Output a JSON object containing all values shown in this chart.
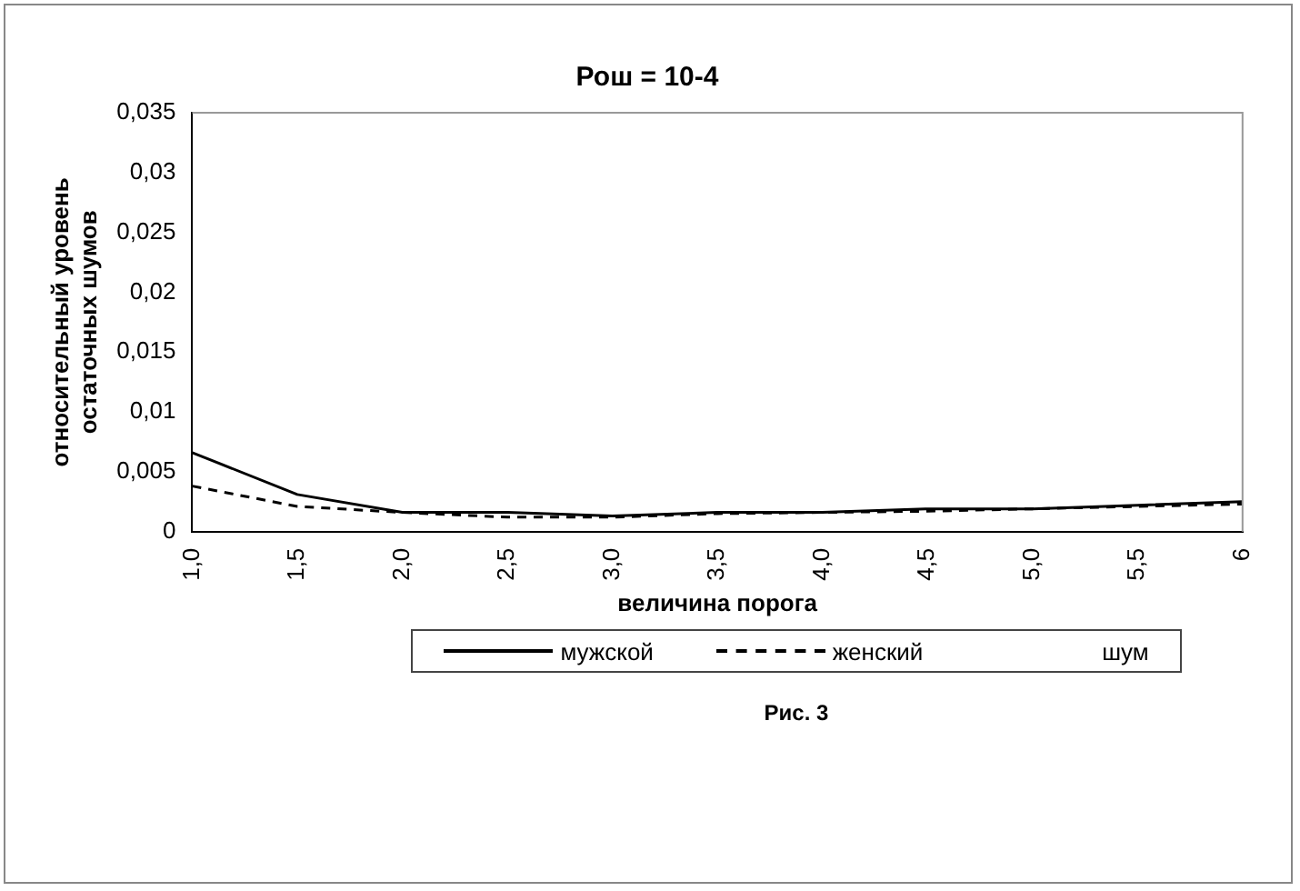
{
  "chart_data": {
    "type": "line",
    "title": "Рош = 10-4",
    "xlabel": "величина порога",
    "ylabel": "относительный уровень остаточных шумов",
    "categories": [
      "1,0",
      "1,5",
      "2,0",
      "2,5",
      "3,0",
      "3,5",
      "4,0",
      "4,5",
      "5,0",
      "5,5",
      "6"
    ],
    "series": [
      {
        "name": "мужской",
        "color": "#000000",
        "line_style": "solid",
        "values": [
          0.0066,
          0.0031,
          0.0016,
          0.0016,
          0.0013,
          0.0016,
          0.0016,
          0.0019,
          0.0019,
          0.0022,
          0.0025
        ]
      },
      {
        "name": "женский",
        "color": "#000000",
        "line_style": "dashed",
        "values": [
          0.0038,
          0.0021,
          0.0016,
          0.0012,
          0.0012,
          0.0015,
          0.0016,
          0.0017,
          0.0019,
          0.0021,
          0.0023
        ]
      },
      {
        "name": "шум",
        "values": [
          null,
          null,
          null,
          null,
          null,
          null,
          null,
          null,
          null,
          null,
          null
        ]
      }
    ],
    "ylim": [
      0,
      0.035
    ],
    "yticks": [
      0,
      {
        "value": 0.005,
        "label": "0,005"
      },
      {
        "value": 0.01,
        "label": "0,01"
      },
      {
        "value": 0.015,
        "label": "0,015"
      },
      {
        "value": 0.02,
        "label": "0,02"
      },
      {
        "value": 0.025,
        "label": "0,025"
      },
      {
        "value": 0.03,
        "label": "0,03"
      },
      {
        "value": 0.035,
        "label": "0,035"
      }
    ],
    "grid": false,
    "legend": "bottom",
    "marker": "none",
    "annotations": [
      "Рис. 3"
    ]
  }
}
